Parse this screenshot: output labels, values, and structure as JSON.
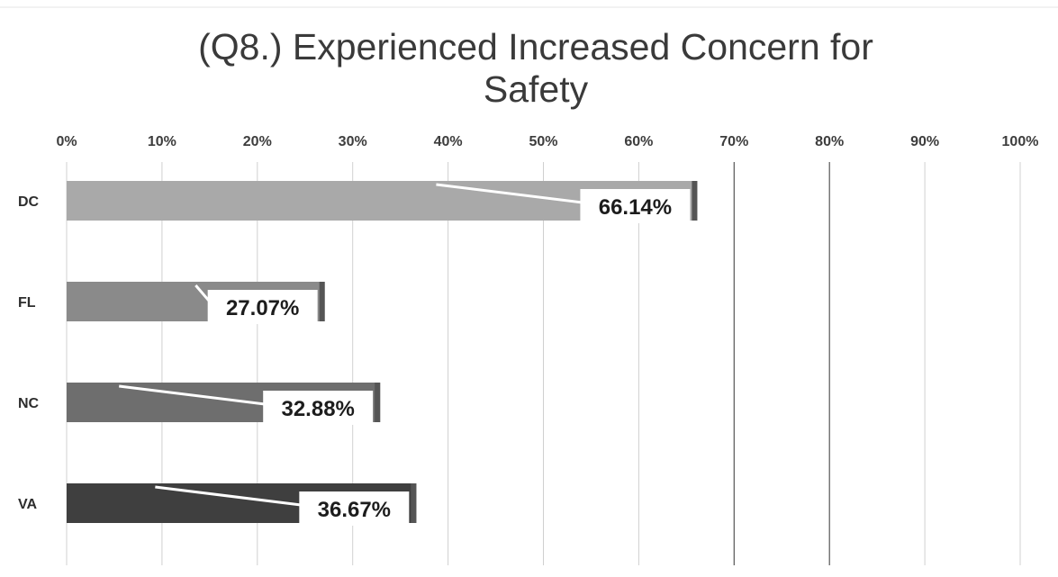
{
  "chart_data": {
    "type": "bar",
    "orientation": "horizontal",
    "title": "(Q8.) Experienced Increased Concern for Safety",
    "title_lines": [
      "(Q8.) Experienced Increased Concern for",
      "Safety"
    ],
    "categories": [
      "DC",
      "FL",
      "NC",
      "VA"
    ],
    "values": [
      66.14,
      27.07,
      32.88,
      36.67
    ],
    "data_labels": [
      "66.14%",
      "27.07%",
      "32.88%",
      "36.67%"
    ],
    "bar_colors": [
      "#a9a9a9",
      "#8a8a8a",
      "#6e6e6e",
      "#3f3f3f"
    ],
    "xlim": [
      0,
      100
    ],
    "x_ticks": [
      0,
      10,
      20,
      30,
      40,
      50,
      60,
      70,
      80,
      90,
      100
    ],
    "x_tick_labels": [
      "0%",
      "10%",
      "20%",
      "30%",
      "40%",
      "50%",
      "60%",
      "70%",
      "80%",
      "90%",
      "100%"
    ],
    "x_axis_position": "top",
    "grid": true,
    "legend": "none",
    "xlabel": "",
    "ylabel": ""
  }
}
